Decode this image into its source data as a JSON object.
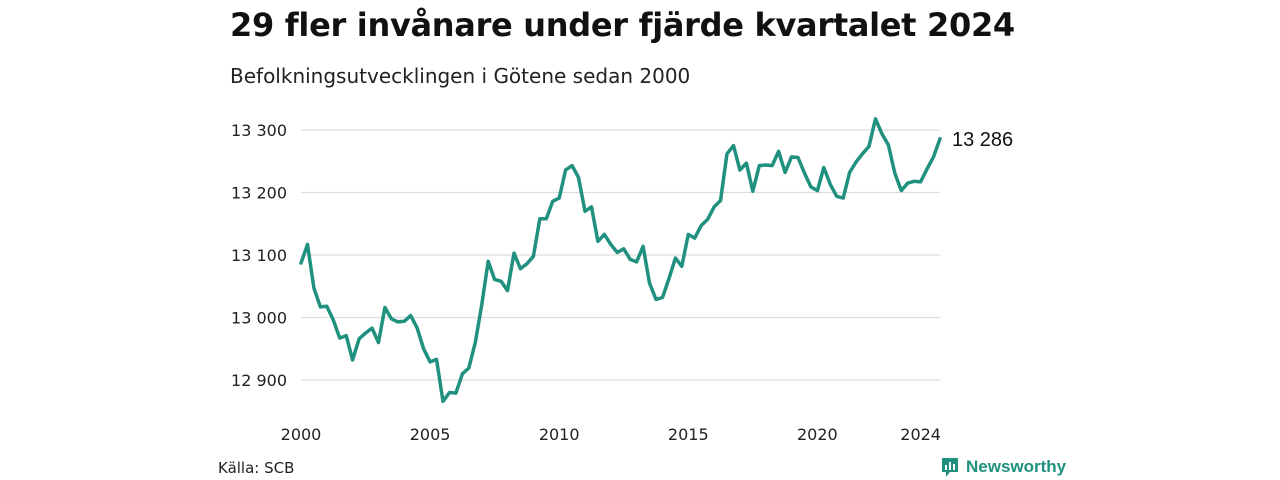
{
  "header": {
    "title": "29 fler invånare under fjärde kvartalet 2024",
    "subtitle": "Befolkningsutvecklingen i Götene sedan 2000"
  },
  "footer": {
    "source": "Källa: SCB",
    "brand": "Newsworthy",
    "brand_icon": "newsworthy-logo-icon"
  },
  "colors": {
    "line": "#20907f",
    "grid": "#dddddd",
    "brand": "#20907f"
  },
  "chart_data": {
    "type": "line",
    "title": "29 fler invånare under fjärde kvartalet 2024",
    "subtitle": "Befolkningsutvecklingen i Götene sedan 2000",
    "xlabel": "",
    "ylabel": "",
    "x_ticks": [
      2000,
      2005,
      2010,
      2015,
      2020,
      2024
    ],
    "y_ticks": [
      12900,
      13000,
      13100,
      13200,
      13300
    ],
    "y_tick_labels": [
      "12 900",
      "13 000",
      "13 100",
      "13 200",
      "13 300"
    ],
    "xlim": [
      2000,
      2024.75
    ],
    "ylim": [
      12865,
      13320
    ],
    "grid": "horizontal",
    "end_label": "13 286",
    "x": [
      2000.0,
      2000.25,
      2000.5,
      2000.75,
      2001.0,
      2001.25,
      2001.5,
      2001.75,
      2002.0,
      2002.25,
      2002.5,
      2002.75,
      2003.0,
      2003.25,
      2003.5,
      2003.75,
      2004.0,
      2004.25,
      2004.5,
      2004.75,
      2005.0,
      2005.25,
      2005.5,
      2005.75,
      2006.0,
      2006.25,
      2006.5,
      2006.75,
      2007.0,
      2007.25,
      2007.5,
      2007.75,
      2008.0,
      2008.25,
      2008.5,
      2008.75,
      2009.0,
      2009.25,
      2009.5,
      2009.75,
      2010.0,
      2010.25,
      2010.5,
      2010.75,
      2011.0,
      2011.25,
      2011.5,
      2011.75,
      2012.0,
      2012.25,
      2012.5,
      2012.75,
      2013.0,
      2013.25,
      2013.5,
      2013.75,
      2014.0,
      2014.25,
      2014.5,
      2014.75,
      2015.0,
      2015.25,
      2015.5,
      2015.75,
      2016.0,
      2016.25,
      2016.5,
      2016.75,
      2017.0,
      2017.25,
      2017.5,
      2017.75,
      2018.0,
      2018.25,
      2018.5,
      2018.75,
      2019.0,
      2019.25,
      2019.5,
      2019.75,
      2020.0,
      2020.25,
      2020.5,
      2020.75,
      2021.0,
      2021.25,
      2021.5,
      2021.75,
      2022.0,
      2022.25,
      2022.5,
      2022.75,
      2023.0,
      2023.25,
      2023.5,
      2023.75,
      2024.0,
      2024.25,
      2024.5,
      2024.75
    ],
    "series": [
      {
        "values": [
          13087,
          13117,
          13047,
          13017,
          13018,
          12996,
          12967,
          12971,
          12932,
          12966,
          12975,
          12983,
          12960,
          13016,
          12998,
          12993,
          12994,
          13003,
          12983,
          12950,
          12929,
          12933,
          12866,
          12880,
          12879,
          12910,
          12919,
          12960,
          13020,
          13090,
          13061,
          13058,
          13043,
          13103,
          13078,
          13086,
          13098,
          13158,
          13158,
          13186,
          13191,
          13236,
          13243,
          13224,
          13170,
          13177,
          13122,
          13133,
          13117,
          13104,
          13110,
          13093,
          13089,
          13114,
          13055,
          13029,
          13032,
          13062,
          13095,
          13082,
          13133,
          13127,
          13147,
          13157,
          13177,
          13187,
          13262,
          13275,
          13236,
          13247,
          13202,
          13243,
          13244,
          13243,
          13266,
          13232,
          13257,
          13256,
          13231,
          13209,
          13203,
          13240,
          13213,
          13194,
          13191,
          13232,
          13249,
          13262,
          13274,
          13318,
          13294,
          13276,
          13231,
          13203,
          13215,
          13218,
          13217,
          13238,
          13257,
          13286
        ]
      }
    ]
  }
}
